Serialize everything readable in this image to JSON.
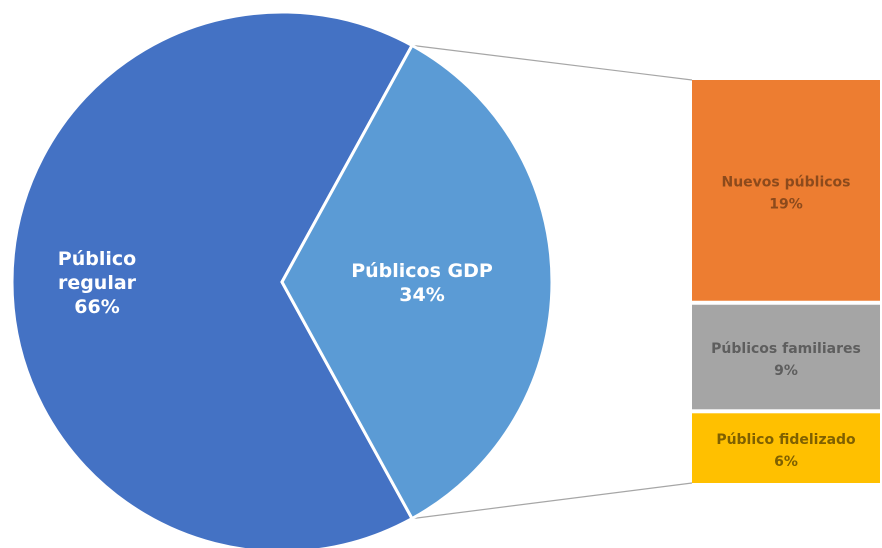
{
  "chart_data": {
    "type": "bar-of-pie",
    "pie": [
      {
        "name": "Público regular",
        "label_lines": [
          "Público",
          "regular"
        ],
        "value_label": "66%",
        "value": 66,
        "color": "#4472C4"
      },
      {
        "name": "Públicos GDP",
        "label_lines": [
          "Públicos GDP"
        ],
        "value_label": "34%",
        "value": 34,
        "color": "#5B9BD5"
      }
    ],
    "breakdown_of": "Públicos GDP",
    "bar": [
      {
        "name": "Nuevos públicos",
        "value_label": "19%",
        "value": 19,
        "color": "#ED7D31",
        "text_color": "#8C4A1C"
      },
      {
        "name": "Públicos familiares",
        "value_label": "9%",
        "value": 9,
        "color": "#A5A5A5",
        "text_color": "#5E5E5E"
      },
      {
        "name": "Público fidelizado",
        "value_label": "6%",
        "value": 6,
        "color": "#FFC000",
        "text_color": "#7F6000"
      }
    ],
    "connector_color": "#A6A6A6",
    "separator_color": "#FFFFFF",
    "legend": "none"
  }
}
